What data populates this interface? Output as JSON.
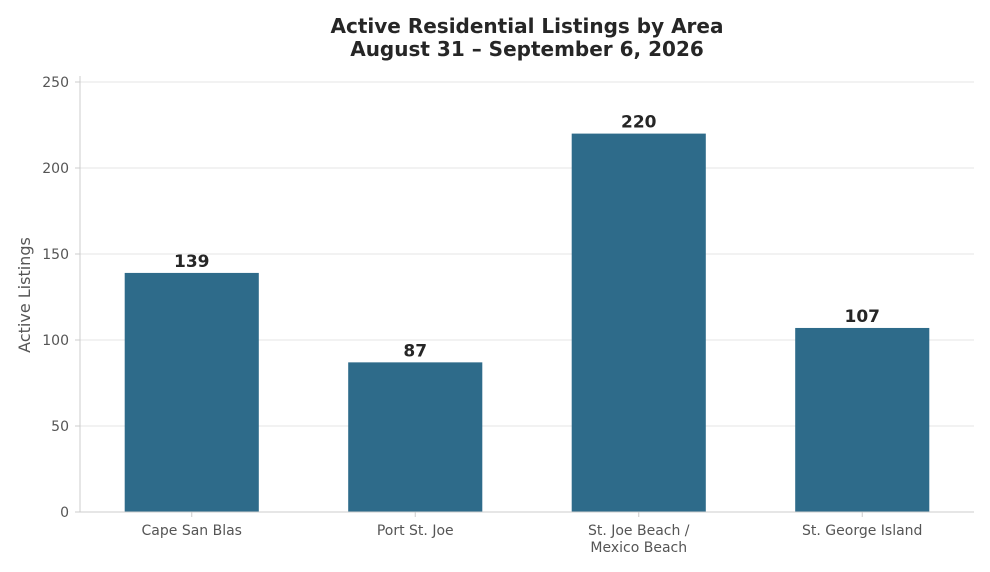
{
  "chart_data": {
    "type": "bar",
    "title": "Active Residential Listings by Area",
    "subtitle": "August 31 – September 6, 2026",
    "xlabel": "",
    "ylabel": "Active Listings",
    "categories": [
      [
        "Cape San Blas"
      ],
      [
        "Port St. Joe"
      ],
      [
        "St. Joe Beach /",
        "Mexico Beach"
      ],
      [
        "St. George Island"
      ]
    ],
    "values": [
      139,
      87,
      220,
      107
    ],
    "data_labels": [
      "139",
      "87",
      "220",
      "107"
    ],
    "ylim": [
      0,
      250
    ],
    "yticks": [
      0,
      50,
      100,
      150,
      200,
      250
    ],
    "grid": "horizontal",
    "legend": "none"
  },
  "colors": {
    "bar": "#2e6b8a",
    "grid": "#e6e6e6",
    "axis": "#cccccc",
    "text": "#262626",
    "tick_text": "#555555"
  }
}
